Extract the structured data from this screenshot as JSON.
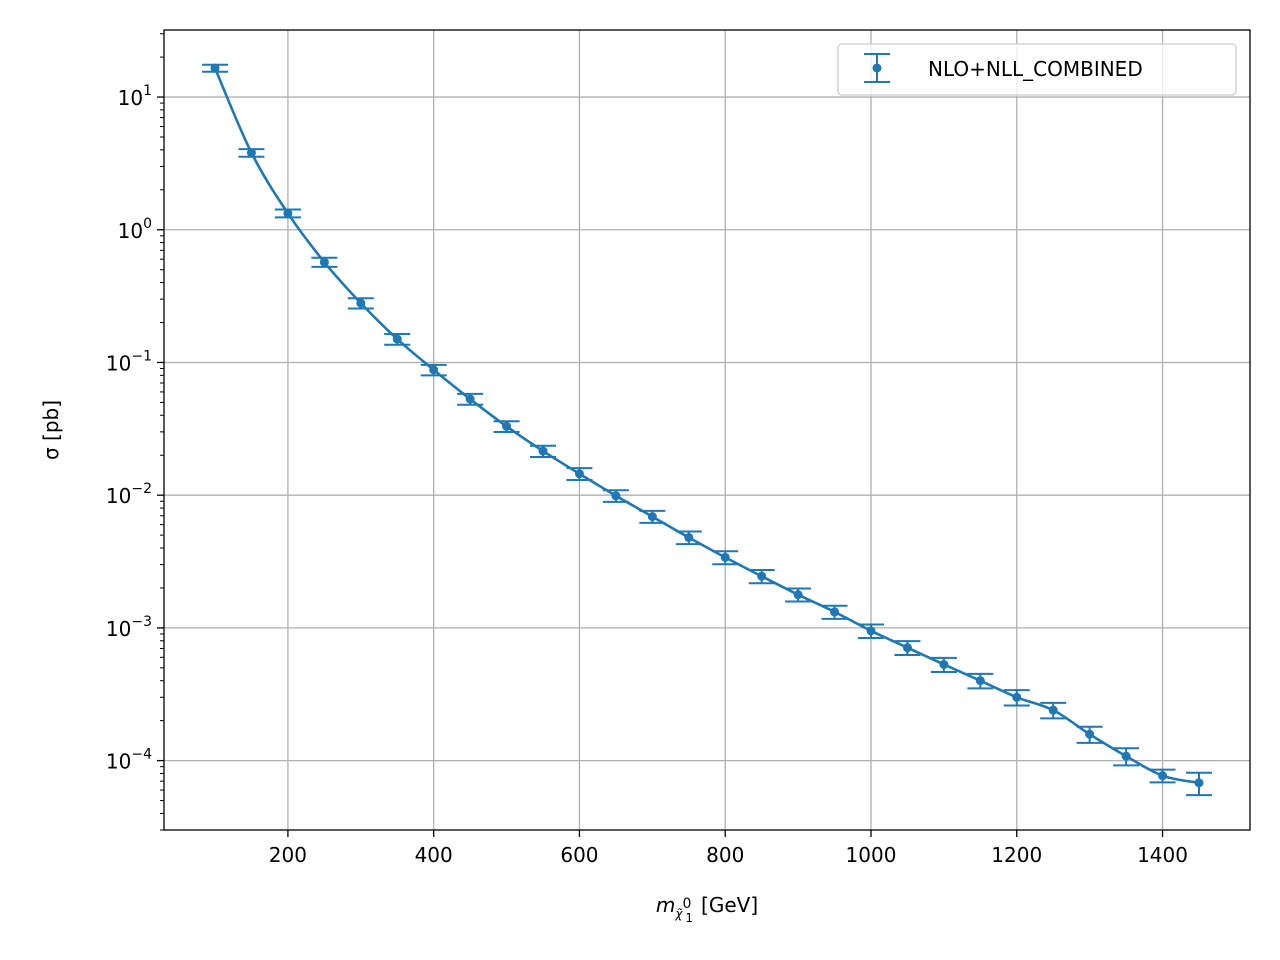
{
  "colors": {
    "series": "#1f77b4",
    "grid": "#b0b0b0",
    "axis": "#000000",
    "legend_border": "#cccccc",
    "background": "#ffffff"
  },
  "chart_data": {
    "type": "line",
    "title": "",
    "xlabel_main": "m",
    "xlabel_sub": "χ̃",
    "xlabel_sub_sup": "0",
    "xlabel_sub_sub": "1",
    "xlabel_unit": "[GeV]",
    "ylabel": "σ [pb]",
    "xlim": [
      30,
      1520
    ],
    "ylim": [
      3e-05,
      32
    ],
    "yscale": "log",
    "grid": true,
    "legend_position": "upper right",
    "x_ticks": [
      200,
      400,
      600,
      800,
      1000,
      1200,
      1400
    ],
    "x_tick_labels": [
      "200",
      "400",
      "600",
      "800",
      "1000",
      "1200",
      "1400"
    ],
    "y_ticks": [
      {
        "value": 10,
        "base": "10",
        "exp": "1"
      },
      {
        "value": 1,
        "base": "10",
        "exp": "0"
      },
      {
        "value": 0.1,
        "base": "10",
        "exp": "−1"
      },
      {
        "value": 0.01,
        "base": "10",
        "exp": "−2"
      },
      {
        "value": 0.001,
        "base": "10",
        "exp": "−3"
      },
      {
        "value": 0.0001,
        "base": "10",
        "exp": "−4"
      }
    ],
    "series": [
      {
        "name": "NLO+NLL_COMBINED",
        "markers": "points with error bars and smooth connecting curve",
        "x": [
          100,
          150,
          200,
          250,
          300,
          350,
          400,
          450,
          500,
          550,
          600,
          650,
          700,
          750,
          800,
          850,
          900,
          950,
          1000,
          1050,
          1100,
          1150,
          1200,
          1250,
          1300,
          1350,
          1400,
          1450
        ],
        "y": [
          16.5,
          3.8,
          1.33,
          0.57,
          0.28,
          0.15,
          0.088,
          0.053,
          0.033,
          0.0215,
          0.0145,
          0.0099,
          0.0069,
          0.0048,
          0.0034,
          0.00245,
          0.00178,
          0.00132,
          0.00095,
          0.00071,
          0.00053,
          0.0004,
          0.0003,
          0.00024,
          0.000158,
          0.000108,
          7.7e-05,
          6.8e-05
        ],
        "yerr_low": [
          1.0,
          0.25,
          0.09,
          0.045,
          0.025,
          0.014,
          0.008,
          0.005,
          0.0031,
          0.0021,
          0.0015,
          0.001,
          0.00072,
          0.00052,
          0.00038,
          0.00028,
          0.0002,
          0.00015,
          0.00011,
          8.5e-05,
          6.5e-05,
          5e-05,
          4e-05,
          3.2e-05,
          2.2e-05,
          1.6e-05,
          8.5e-06,
          1.3e-05
        ],
        "yerr_high": [
          1.0,
          0.25,
          0.09,
          0.045,
          0.025,
          0.014,
          0.008,
          0.005,
          0.0031,
          0.0021,
          0.0015,
          0.001,
          0.00072,
          0.00052,
          0.00038,
          0.00028,
          0.0002,
          0.00015,
          0.00011,
          8.5e-05,
          6.5e-05,
          5e-05,
          4e-05,
          3.2e-05,
          2.2e-05,
          1.6e-05,
          8.5e-06,
          1.3e-05
        ]
      }
    ]
  }
}
